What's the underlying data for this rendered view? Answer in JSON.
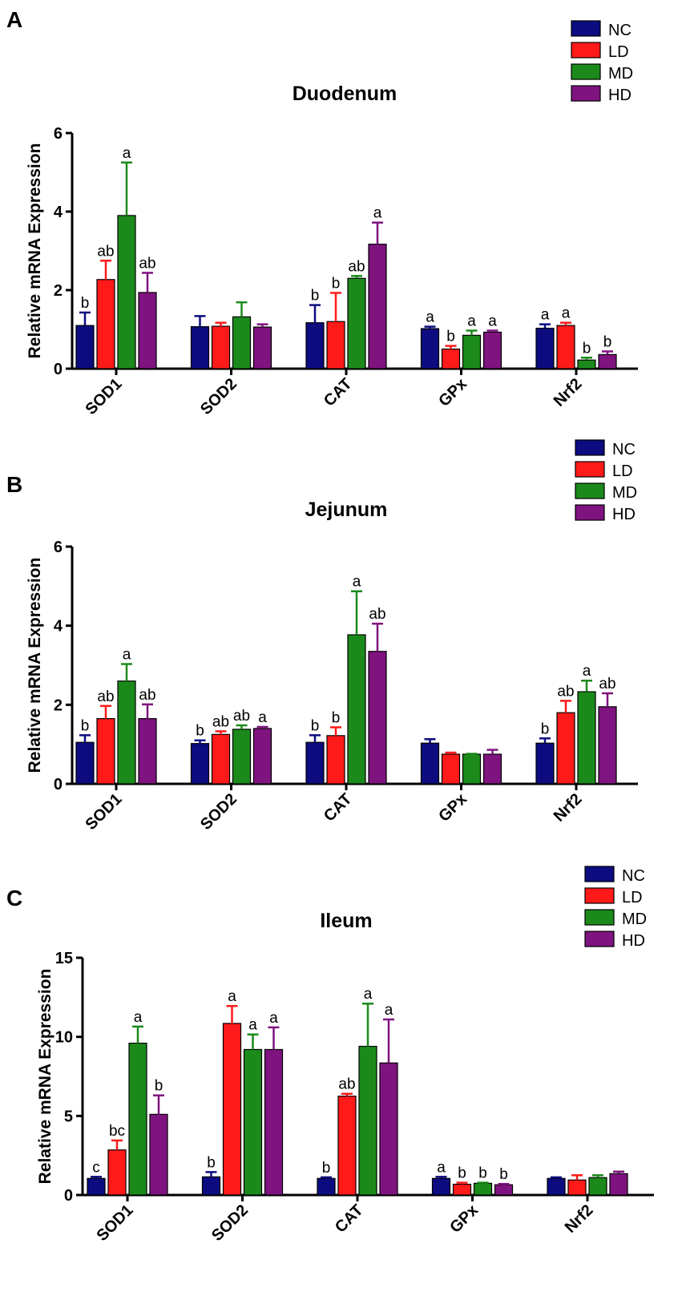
{
  "chart_data": [
    {
      "type": "bar",
      "panel": "A",
      "title": "Duodenum",
      "xlabel": "",
      "ylabel": "Relative mRNA Expression",
      "ylim": [
        0,
        6
      ],
      "yticks": [
        0,
        2,
        4,
        6
      ],
      "categories": [
        "SOD1",
        "SOD2",
        "CAT",
        "GPx",
        "Nrf2"
      ],
      "series": [
        {
          "name": "NC",
          "values": [
            1.1,
            1.07,
            1.17,
            1.02,
            1.03
          ],
          "errors": [
            0.33,
            0.27,
            0.45,
            0.05,
            0.1
          ],
          "labels": [
            "b",
            "",
            "b",
            "a",
            "a"
          ]
        },
        {
          "name": "LD",
          "values": [
            2.27,
            1.08,
            1.2,
            0.5,
            1.1
          ],
          "errors": [
            0.48,
            0.09,
            0.73,
            0.08,
            0.07
          ],
          "labels": [
            "ab",
            "",
            "b",
            "b",
            "a"
          ]
        },
        {
          "name": "MD",
          "values": [
            3.9,
            1.32,
            2.3,
            0.85,
            0.22
          ],
          "errors": [
            1.35,
            0.37,
            0.06,
            0.12,
            0.06
          ],
          "labels": [
            "a",
            "",
            "ab",
            "a",
            "b"
          ]
        },
        {
          "name": "HD",
          "values": [
            1.94,
            1.06,
            3.17,
            0.93,
            0.36
          ],
          "errors": [
            0.5,
            0.07,
            0.55,
            0.04,
            0.08
          ],
          "labels": [
            "ab",
            "",
            "a",
            "a",
            "b"
          ]
        }
      ]
    },
    {
      "type": "bar",
      "panel": "B",
      "title": "Jejunum",
      "xlabel": "",
      "ylabel": "Relative mRNA Expression",
      "ylim": [
        0,
        6
      ],
      "yticks": [
        0,
        2,
        4,
        6
      ],
      "categories": [
        "SOD1",
        "SOD2",
        "CAT",
        "GPx",
        "Nrf2"
      ],
      "series": [
        {
          "name": "NC",
          "values": [
            1.05,
            1.02,
            1.05,
            1.03,
            1.03
          ],
          "errors": [
            0.18,
            0.08,
            0.18,
            0.1,
            0.12
          ],
          "labels": [
            "b",
            "b",
            "b",
            "",
            "b"
          ]
        },
        {
          "name": "LD",
          "values": [
            1.65,
            1.25,
            1.22,
            0.75,
            1.8
          ],
          "errors": [
            0.32,
            0.08,
            0.21,
            0.04,
            0.3
          ],
          "labels": [
            "ab",
            "ab",
            "b",
            "",
            "ab"
          ]
        },
        {
          "name": "MD",
          "values": [
            2.6,
            1.38,
            3.77,
            0.75,
            2.33
          ],
          "errors": [
            0.43,
            0.1,
            1.1,
            0.01,
            0.28
          ],
          "labels": [
            "a",
            "ab",
            "a",
            "",
            "a"
          ]
        },
        {
          "name": "HD",
          "values": [
            1.65,
            1.4,
            3.35,
            0.75,
            1.95
          ],
          "errors": [
            0.36,
            0.04,
            0.7,
            0.11,
            0.34
          ],
          "labels": [
            "ab",
            "a",
            "ab",
            "",
            "ab"
          ]
        }
      ]
    },
    {
      "type": "bar",
      "panel": "C",
      "title": "Ileum",
      "xlabel": "",
      "ylabel": "Relative mRNA Expression",
      "ylim": [
        0,
        15
      ],
      "yticks": [
        0,
        5,
        10,
        15
      ],
      "categories": [
        "SOD1",
        "SOD2",
        "CAT",
        "GPx",
        "Nrf2"
      ],
      "series": [
        {
          "name": "NC",
          "values": [
            1.05,
            1.15,
            1.05,
            1.05,
            1.05
          ],
          "errors": [
            0.1,
            0.3,
            0.07,
            0.1,
            0.07
          ],
          "labels": [
            "c",
            "b",
            "b",
            "a",
            ""
          ]
        },
        {
          "name": "LD",
          "values": [
            2.85,
            10.85,
            6.25,
            0.68,
            0.95
          ],
          "errors": [
            0.6,
            1.1,
            0.15,
            0.1,
            0.3
          ],
          "labels": [
            "bc",
            "a",
            "ab",
            "b",
            ""
          ]
        },
        {
          "name": "MD",
          "values": [
            9.6,
            9.2,
            9.4,
            0.74,
            1.1
          ],
          "errors": [
            1.05,
            0.95,
            2.7,
            0.04,
            0.15
          ],
          "labels": [
            "a",
            "a",
            "a",
            "b",
            ""
          ]
        },
        {
          "name": "HD",
          "values": [
            5.1,
            9.2,
            8.35,
            0.65,
            1.35
          ],
          "errors": [
            1.2,
            1.4,
            2.75,
            0.05,
            0.13
          ],
          "labels": [
            "b",
            "a",
            "a",
            "b",
            ""
          ]
        }
      ]
    }
  ],
  "colors": {
    "NC": "#0c0c80",
    "LD": "#ff1a1a",
    "MD": "#1b8a1b",
    "HD": "#7f137f",
    "axis": "#000000"
  }
}
